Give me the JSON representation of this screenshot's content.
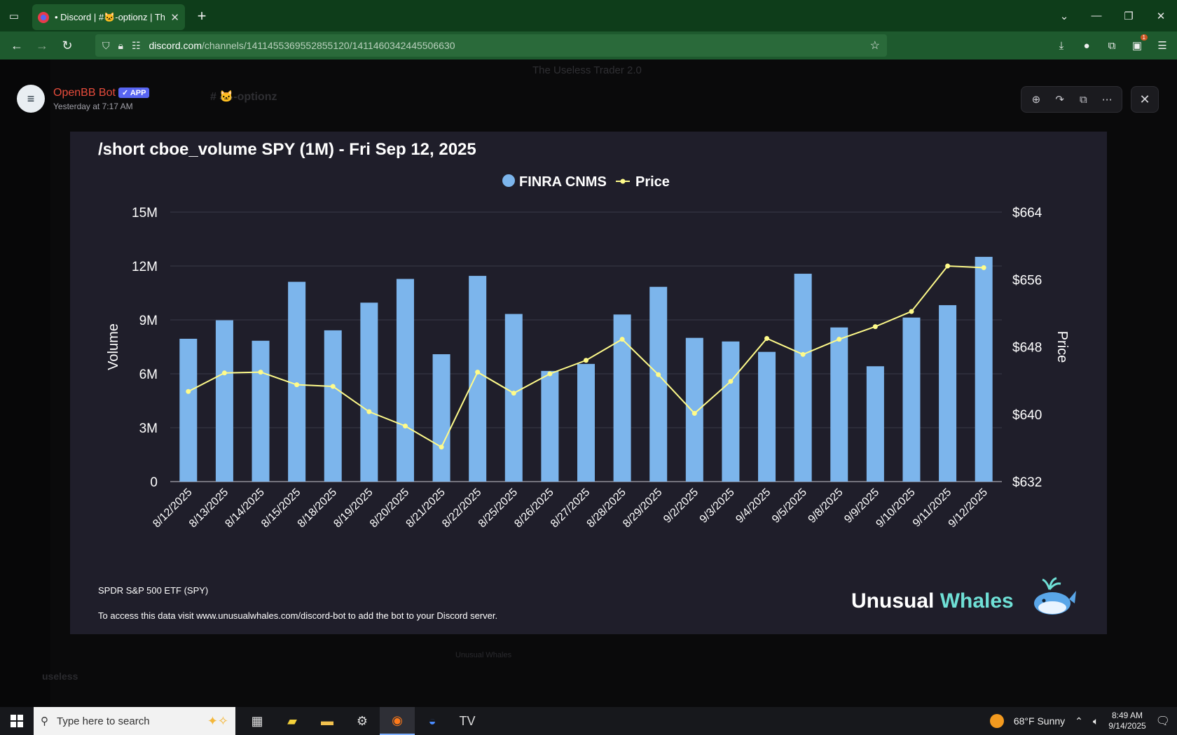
{
  "browser": {
    "tab_title": "• Discord | #🐱-optionz | The U",
    "tab_close": "✕",
    "new_tab": "+",
    "url_host": "discord.com",
    "url_path": "/channels/1411455369552855120/1411460342445506630"
  },
  "discord_bg": {
    "server_name": "The Useless Trader 2.0",
    "channel": "# 🐱-optionz",
    "username": "useless",
    "whale_thumb": "Unusual Whales"
  },
  "message": {
    "avatar": "≡",
    "bot_name": "OpenBB Bot",
    "bot_badge": "✓ APP",
    "timestamp": "Yesterday at 7:17 AM"
  },
  "chart_image": {
    "title": "/short cboe_volume SPY (1M) - Fri Sep 12, 2025",
    "footer_line1": "SPDR S&P 500 ETF (SPY)",
    "footer_line2": "To access this data visit www.unusualwhales.com/discord-bot to add the bot to your Discord server.",
    "brand_part1": "Unusual",
    "brand_part2": "Whales"
  },
  "chart_data": {
    "type": "bar",
    "title": "/short cboe_volume SPY (1M) - Fri Sep 12, 2025",
    "ylabel": "Volume",
    "y2label": "Price",
    "legend_position": "top-center",
    "grid": true,
    "ylim": [
      0,
      15000000
    ],
    "y2lim": [
      632,
      664
    ],
    "y_ticks": [
      "0",
      "3M",
      "6M",
      "9M",
      "12M",
      "15M"
    ],
    "y2_ticks": [
      "$632",
      "$640",
      "$648",
      "$656",
      "$664"
    ],
    "categories": [
      "8/12/2025",
      "8/13/2025",
      "8/14/2025",
      "8/15/2025",
      "8/18/2025",
      "8/19/2025",
      "8/20/2025",
      "8/21/2025",
      "8/22/2025",
      "8/25/2025",
      "8/26/2025",
      "8/27/2025",
      "8/28/2025",
      "8/29/2025",
      "9/2/2025",
      "9/3/2025",
      "9/4/2025",
      "9/5/2025",
      "9/8/2025",
      "9/9/2025",
      "9/10/2025",
      "9/11/2025",
      "9/12/2025"
    ],
    "series": [
      {
        "name": "FINRA CNMS",
        "type": "bar",
        "color": "#7cb5ec",
        "values": [
          7950000,
          8980000,
          7840000,
          11120000,
          8420000,
          9960000,
          11280000,
          7090000,
          11450000,
          9330000,
          6160000,
          6550000,
          9300000,
          10840000,
          8000000,
          7800000,
          7220000,
          11570000,
          8580000,
          6420000,
          9130000,
          9820000,
          12510000
        ]
      },
      {
        "name": "Price",
        "type": "line",
        "color": "#fffb8a",
        "axis": "right",
        "values": [
          642.7,
          644.9,
          645.0,
          643.5,
          643.3,
          640.3,
          638.6,
          636.1,
          645.0,
          642.5,
          644.8,
          646.4,
          648.9,
          644.7,
          640.1,
          643.9,
          649.0,
          647.1,
          648.9,
          650.4,
          652.2,
          657.6,
          657.4
        ]
      }
    ]
  },
  "taskbar": {
    "search_placeholder": "Type here to search",
    "weather": "68°F  Sunny",
    "time": "8:49 AM",
    "date": "9/14/2025"
  }
}
